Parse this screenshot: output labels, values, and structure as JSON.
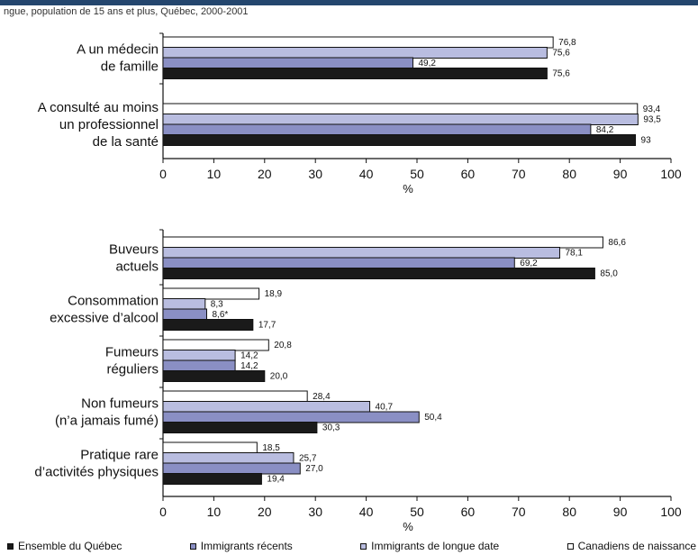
{
  "header": {
    "text": "ngue, population de 15 ans et plus, Québec, 2000-2001"
  },
  "colors": {
    "quebec": "#1a1a1a",
    "recents": "#8a8fc4",
    "longue_date": "#b9bde0",
    "canadiens": "#ffffff",
    "topbar": "#24466e"
  },
  "legend": [
    {
      "key": "quebec",
      "label": "Ensemble du Québec"
    },
    {
      "key": "recents",
      "label": "Immigrants récents"
    },
    {
      "key": "longue_date",
      "label": "Immigrants de longue date"
    },
    {
      "key": "canadiens",
      "label": "Canadiens de naissance"
    }
  ],
  "chart_data": [
    {
      "type": "bar",
      "orientation": "horizontal",
      "xlabel": "%",
      "xlim": [
        0,
        100
      ],
      "xticks": [
        0,
        10,
        20,
        30,
        40,
        50,
        60,
        70,
        80,
        90,
        100
      ],
      "series_order_top_to_bottom": [
        "canadiens",
        "longue_date",
        "recents",
        "quebec"
      ],
      "categories": [
        {
          "label": [
            "A un médecin",
            "de famille"
          ],
          "values": {
            "canadiens": 76.8,
            "longue_date": 75.6,
            "recents": 49.2,
            "quebec": 75.6
          },
          "labels": {
            "canadiens": "76,8",
            "longue_date": "75,6",
            "recents": "49,2",
            "quebec": "75,6"
          }
        },
        {
          "label": [
            "A consulté au moins",
            "un professionnel",
            "de la santé"
          ],
          "values": {
            "canadiens": 93.4,
            "longue_date": 93.5,
            "recents": 84.2,
            "quebec": 93
          },
          "labels": {
            "canadiens": "93,4",
            "longue_date": "93,5",
            "recents": "84,2",
            "quebec": "93"
          }
        }
      ]
    },
    {
      "type": "bar",
      "orientation": "horizontal",
      "xlabel": "%",
      "xlim": [
        0,
        100
      ],
      "xticks": [
        0,
        10,
        20,
        30,
        40,
        50,
        60,
        70,
        80,
        90,
        100
      ],
      "series_order_top_to_bottom": [
        "canadiens",
        "longue_date",
        "recents",
        "quebec"
      ],
      "categories": [
        {
          "label": [
            "Buveurs",
            "actuels"
          ],
          "values": {
            "canadiens": 86.6,
            "longue_date": 78.1,
            "recents": 69.2,
            "quebec": 85.0
          },
          "labels": {
            "canadiens": "86,6",
            "longue_date": "78,1",
            "recents": "69,2",
            "quebec": "85,0"
          }
        },
        {
          "label": [
            "Consommation",
            "excessive d’alcool"
          ],
          "values": {
            "canadiens": 18.9,
            "longue_date": 8.3,
            "recents": 8.6,
            "quebec": 17.7
          },
          "labels": {
            "canadiens": "18,9",
            "longue_date": "8,3",
            "recents": "8,6*",
            "quebec": "17,7"
          }
        },
        {
          "label": [
            "Fumeurs",
            "réguliers"
          ],
          "values": {
            "canadiens": 20.8,
            "longue_date": 14.2,
            "recents": 14.2,
            "quebec": 20.0
          },
          "labels": {
            "canadiens": "20,8",
            "longue_date": "14,2",
            "recents": "14,2",
            "quebec": "20,0"
          }
        },
        {
          "label": [
            "Non fumeurs",
            "(n’a jamais fumé)"
          ],
          "values": {
            "canadiens": 28.4,
            "longue_date": 40.7,
            "recents": 50.4,
            "quebec": 30.3
          },
          "labels": {
            "canadiens": "28,4",
            "longue_date": "40,7",
            "recents": "50,4",
            "quebec": "30,3"
          }
        },
        {
          "label": [
            "Pratique rare",
            "d’activités physiques"
          ],
          "values": {
            "canadiens": 18.5,
            "longue_date": 25.7,
            "recents": 27.0,
            "quebec": 19.4
          },
          "labels": {
            "canadiens": "18,5",
            "longue_date": "25,7",
            "recents": "27,0",
            "quebec": "19,4"
          }
        }
      ]
    }
  ]
}
